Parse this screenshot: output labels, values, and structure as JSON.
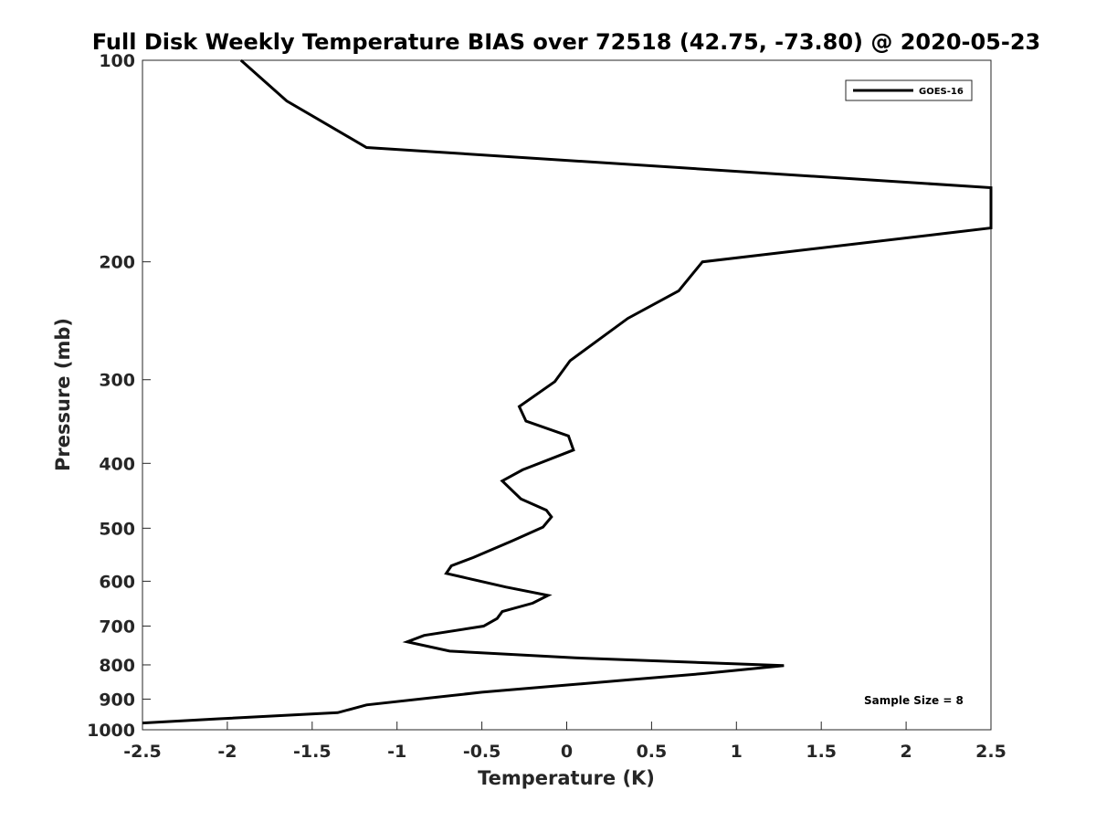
{
  "chart_data": {
    "type": "line",
    "title": "Full Disk Weekly Temperature BIAS over 72518 (42.75, -73.80) @ 2020-05-23",
    "xlabel": "Temperature (K)",
    "ylabel": "Pressure (mb)",
    "xlim": [
      -2.5,
      2.5
    ],
    "ylim": [
      100,
      1000
    ],
    "yscale": "log",
    "y_direction": "reversed",
    "grid": false,
    "legend_position": "top-right",
    "annotation": "Sample Size = 8",
    "xticks": [
      -2.5,
      -2,
      -1.5,
      -1,
      -0.5,
      0,
      0.5,
      1,
      1.5,
      2,
      2.5
    ],
    "xtick_labels": [
      "-2.5",
      "-2",
      "-1.5",
      "-1",
      "-0.5",
      "0",
      "0.5",
      "1",
      "1.5",
      "2",
      "2.5"
    ],
    "yticks": [
      100,
      200,
      300,
      400,
      500,
      600,
      700,
      800,
      900,
      1000
    ],
    "ytick_labels": [
      "100",
      "200",
      "300",
      "400",
      "500",
      "600",
      "700",
      "800",
      "900",
      "1000"
    ],
    "series": [
      {
        "name": "GOES-16",
        "color": "#000000",
        "points": [
          [
            -1.92,
            100
          ],
          [
            -1.65,
            115
          ],
          [
            -1.18,
            135
          ],
          [
            2.5,
            155
          ],
          [
            2.5,
            178
          ],
          [
            0.8,
            200
          ],
          [
            0.66,
            221
          ],
          [
            0.36,
            243
          ],
          [
            0.02,
            281
          ],
          [
            -0.07,
            302
          ],
          [
            -0.28,
            329
          ],
          [
            -0.24,
            346
          ],
          [
            0.01,
            364
          ],
          [
            0.04,
            382
          ],
          [
            -0.26,
            409
          ],
          [
            -0.38,
            425
          ],
          [
            -0.27,
            452
          ],
          [
            -0.12,
            470
          ],
          [
            -0.09,
            481
          ],
          [
            -0.14,
            498
          ],
          [
            -0.32,
            522
          ],
          [
            -0.55,
            553
          ],
          [
            -0.68,
            569
          ],
          [
            -0.71,
            584
          ],
          [
            -0.36,
            612
          ],
          [
            -0.11,
            630
          ],
          [
            -0.2,
            647
          ],
          [
            -0.38,
            666
          ],
          [
            -0.41,
            682
          ],
          [
            -0.49,
            700
          ],
          [
            -0.84,
            723
          ],
          [
            -0.94,
            739
          ],
          [
            -0.69,
            763
          ],
          [
            0.05,
            781
          ],
          [
            1.28,
            802
          ],
          [
            0.81,
            824
          ],
          [
            0.37,
            842
          ],
          [
            -0.5,
            879
          ],
          [
            -1.18,
            918
          ],
          [
            -1.35,
            943
          ],
          [
            -2.05,
            963
          ],
          [
            -2.5,
            977
          ]
        ]
      }
    ]
  }
}
